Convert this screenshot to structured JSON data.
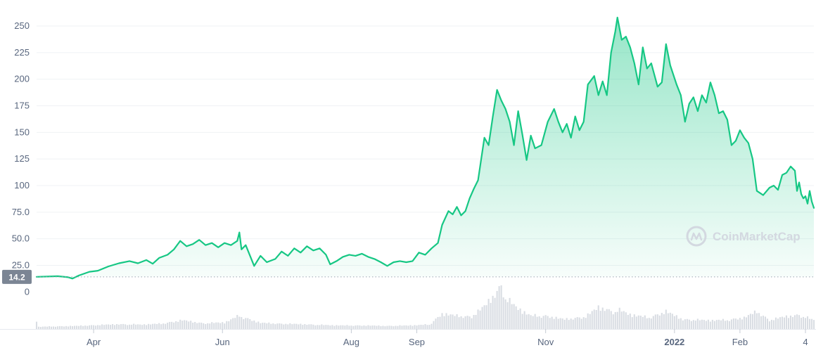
{
  "chart_data": {
    "type": "area",
    "y_axis": {
      "ticks": [
        {
          "value": 250,
          "label": "250"
        },
        {
          "value": 225,
          "label": "225"
        },
        {
          "value": 200,
          "label": "200"
        },
        {
          "value": 175,
          "label": "175"
        },
        {
          "value": 150,
          "label": "150"
        },
        {
          "value": 125,
          "label": "125"
        },
        {
          "value": 100,
          "label": "100"
        },
        {
          "value": 75,
          "label": "75.0"
        },
        {
          "value": 50,
          "label": "50.0"
        },
        {
          "value": 25,
          "label": "25.0"
        }
      ],
      "volume_zero_label": "0",
      "ylim": [
        14.2,
        260
      ]
    },
    "x_axis": {
      "ticks": [
        {
          "date": "2021-04-01",
          "label": "Apr",
          "bold": false
        },
        {
          "date": "2021-06-01",
          "label": "Jun",
          "bold": false
        },
        {
          "date": "2021-08-01",
          "label": "Aug",
          "bold": false
        },
        {
          "date": "2021-09-01",
          "label": "Sep",
          "bold": false
        },
        {
          "date": "2021-11-01",
          "label": "Nov",
          "bold": false
        },
        {
          "date": "2022-01-01",
          "label": "2022",
          "bold": true
        },
        {
          "date": "2022-02-01",
          "label": "Feb",
          "bold": false
        },
        {
          "date": "2022-03-04",
          "label": "4",
          "bold": false
        }
      ],
      "xlim": [
        "2021-03-05",
        "2022-03-08"
      ]
    },
    "reference_line": {
      "value": 14.2,
      "label": "14.2"
    },
    "line_color": "#16c784",
    "watermark": "CoinMarketCap",
    "price_series": [
      [
        "2021-03-05",
        14.2
      ],
      [
        "2021-03-10",
        14.5
      ],
      [
        "2021-03-15",
        14.8
      ],
      [
        "2021-03-20",
        13.8
      ],
      [
        "2021-03-22",
        12.6
      ],
      [
        "2021-03-25",
        15.5
      ],
      [
        "2021-03-30",
        19.0
      ],
      [
        "2021-04-03",
        20.0
      ],
      [
        "2021-04-08",
        24.0
      ],
      [
        "2021-04-13",
        27.0
      ],
      [
        "2021-04-18",
        29.0
      ],
      [
        "2021-04-22",
        27.0
      ],
      [
        "2021-04-26",
        30.0
      ],
      [
        "2021-04-29",
        26.5
      ],
      [
        "2021-05-02",
        32.0
      ],
      [
        "2021-05-06",
        35.0
      ],
      [
        "2021-05-09",
        40.0
      ],
      [
        "2021-05-12",
        48.0
      ],
      [
        "2021-05-15",
        43.0
      ],
      [
        "2021-05-18",
        45.0
      ],
      [
        "2021-05-21",
        49.0
      ],
      [
        "2021-05-24",
        44.0
      ],
      [
        "2021-05-27",
        46.0
      ],
      [
        "2021-05-30",
        42.0
      ],
      [
        "2021-06-02",
        46.0
      ],
      [
        "2021-06-05",
        44.0
      ],
      [
        "2021-06-08",
        48.0
      ],
      [
        "2021-06-09",
        56.0
      ],
      [
        "2021-06-10",
        40.0
      ],
      [
        "2021-06-12",
        44.0
      ],
      [
        "2021-06-16",
        24.5
      ],
      [
        "2021-06-19",
        34.0
      ],
      [
        "2021-06-22",
        28.0
      ],
      [
        "2021-06-26",
        31.0
      ],
      [
        "2021-06-29",
        38.0
      ],
      [
        "2021-07-02",
        34.0
      ],
      [
        "2021-07-05",
        41.0
      ],
      [
        "2021-07-08",
        37.0
      ],
      [
        "2021-07-11",
        43.0
      ],
      [
        "2021-07-14",
        39.0
      ],
      [
        "2021-07-17",
        41.0
      ],
      [
        "2021-07-20",
        35.0
      ],
      [
        "2021-07-22",
        26.0
      ],
      [
        "2021-07-25",
        29.0
      ],
      [
        "2021-07-28",
        33.0
      ],
      [
        "2021-07-31",
        35.0
      ],
      [
        "2021-08-03",
        34.0
      ],
      [
        "2021-08-06",
        36.0
      ],
      [
        "2021-08-09",
        33.0
      ],
      [
        "2021-08-12",
        31.0
      ],
      [
        "2021-08-15",
        28.0
      ],
      [
        "2021-08-18",
        24.5
      ],
      [
        "2021-08-21",
        28.0
      ],
      [
        "2021-08-24",
        29.0
      ],
      [
        "2021-08-27",
        28.0
      ],
      [
        "2021-08-30",
        29.0
      ],
      [
        "2021-09-02",
        37.0
      ],
      [
        "2021-09-05",
        35.0
      ],
      [
        "2021-09-08",
        41.0
      ],
      [
        "2021-09-11",
        46.0
      ],
      [
        "2021-09-13",
        63.0
      ],
      [
        "2021-09-16",
        76.0
      ],
      [
        "2021-09-18",
        73.0
      ],
      [
        "2021-09-20",
        80.0
      ],
      [
        "2021-09-22",
        72.0
      ],
      [
        "2021-09-24",
        76.0
      ],
      [
        "2021-09-26",
        88.0
      ],
      [
        "2021-09-28",
        97.0
      ],
      [
        "2021-09-30",
        105.0
      ],
      [
        "2021-10-03",
        145.0
      ],
      [
        "2021-10-05",
        138.0
      ],
      [
        "2021-10-07",
        165.0
      ],
      [
        "2021-10-09",
        190.0
      ],
      [
        "2021-10-11",
        180.0
      ],
      [
        "2021-10-13",
        172.0
      ],
      [
        "2021-10-15",
        160.0
      ],
      [
        "2021-10-17",
        138.0
      ],
      [
        "2021-10-19",
        170.0
      ],
      [
        "2021-10-21",
        148.0
      ],
      [
        "2021-10-23",
        124.0
      ],
      [
        "2021-10-25",
        147.0
      ],
      [
        "2021-10-27",
        135.0
      ],
      [
        "2021-10-30",
        138.0
      ],
      [
        "2021-11-02",
        160.0
      ],
      [
        "2021-11-05",
        172.0
      ],
      [
        "2021-11-07",
        160.0
      ],
      [
        "2021-11-09",
        150.0
      ],
      [
        "2021-11-11",
        158.0
      ],
      [
        "2021-11-13",
        145.0
      ],
      [
        "2021-11-15",
        165.0
      ],
      [
        "2021-11-17",
        152.0
      ],
      [
        "2021-11-19",
        160.0
      ],
      [
        "2021-11-21",
        195.0
      ],
      [
        "2021-11-24",
        203.0
      ],
      [
        "2021-11-26",
        185.0
      ],
      [
        "2021-11-28",
        198.0
      ],
      [
        "2021-11-30",
        185.0
      ],
      [
        "2021-12-02",
        225.0
      ],
      [
        "2021-12-04",
        245.0
      ],
      [
        "2021-12-05",
        258.0
      ],
      [
        "2021-12-07",
        237.0
      ],
      [
        "2021-12-09",
        240.0
      ],
      [
        "2021-12-11",
        230.0
      ],
      [
        "2021-12-13",
        215.0
      ],
      [
        "2021-12-15",
        195.0
      ],
      [
        "2021-12-17",
        230.0
      ],
      [
        "2021-12-19",
        210.0
      ],
      [
        "2021-12-21",
        215.0
      ],
      [
        "2021-12-24",
        193.0
      ],
      [
        "2021-12-26",
        197.0
      ],
      [
        "2021-12-28",
        233.0
      ],
      [
        "2021-12-30",
        213.0
      ],
      [
        "2022-01-02",
        195.0
      ],
      [
        "2022-01-04",
        185.0
      ],
      [
        "2022-01-06",
        160.0
      ],
      [
        "2022-01-08",
        177.0
      ],
      [
        "2022-01-10",
        183.0
      ],
      [
        "2022-01-12",
        170.0
      ],
      [
        "2022-01-14",
        185.0
      ],
      [
        "2022-01-16",
        178.0
      ],
      [
        "2022-01-18",
        197.0
      ],
      [
        "2022-01-20",
        185.0
      ],
      [
        "2022-01-22",
        168.0
      ],
      [
        "2022-01-24",
        170.0
      ],
      [
        "2022-01-26",
        162.0
      ],
      [
        "2022-01-28",
        138.0
      ],
      [
        "2022-01-30",
        142.0
      ],
      [
        "2022-02-01",
        152.0
      ],
      [
        "2022-02-03",
        145.0
      ],
      [
        "2022-02-05",
        140.0
      ],
      [
        "2022-02-07",
        125.0
      ],
      [
        "2022-02-09",
        95.0
      ],
      [
        "2022-02-12",
        91.0
      ],
      [
        "2022-02-15",
        98.0
      ],
      [
        "2022-02-17",
        100.0
      ],
      [
        "2022-02-19",
        96.0
      ],
      [
        "2022-02-21",
        110.0
      ],
      [
        "2022-02-23",
        112.0
      ],
      [
        "2022-02-25",
        118.0
      ],
      [
        "2022-02-27",
        114.0
      ],
      [
        "2022-02-28",
        95.0
      ],
      [
        "2022-03-01",
        103.0
      ],
      [
        "2022-03-02",
        92.0
      ],
      [
        "2022-03-03",
        88.0
      ],
      [
        "2022-03-04",
        90.0
      ],
      [
        "2022-03-05",
        83.0
      ],
      [
        "2022-03-06",
        95.0
      ],
      [
        "2022-03-07",
        85.0
      ],
      [
        "2022-03-08",
        79.0
      ]
    ],
    "volume": {
      "unit": "relative",
      "series": [
        [
          "2021-03-06",
          0.05
        ],
        [
          "2021-03-14",
          0.06
        ],
        [
          "2021-03-24",
          0.07
        ],
        [
          "2021-04-03",
          0.09
        ],
        [
          "2021-04-13",
          0.11
        ],
        [
          "2021-04-23",
          0.1
        ],
        [
          "2021-05-03",
          0.12
        ],
        [
          "2021-05-13",
          0.2
        ],
        [
          "2021-05-23",
          0.13
        ],
        [
          "2021-06-02",
          0.15
        ],
        [
          "2021-06-09",
          0.3
        ],
        [
          "2021-06-19",
          0.14
        ],
        [
          "2021-06-29",
          0.12
        ],
        [
          "2021-07-09",
          0.11
        ],
        [
          "2021-07-19",
          0.09
        ],
        [
          "2021-07-29",
          0.08
        ],
        [
          "2021-08-08",
          0.08
        ],
        [
          "2021-08-18",
          0.07
        ],
        [
          "2021-08-28",
          0.08
        ],
        [
          "2021-09-07",
          0.1
        ],
        [
          "2021-09-13",
          0.35
        ],
        [
          "2021-09-20",
          0.3
        ],
        [
          "2021-09-27",
          0.28
        ],
        [
          "2021-10-03",
          0.52
        ],
        [
          "2021-10-09",
          0.85
        ],
        [
          "2021-10-11",
          1.0
        ],
        [
          "2021-10-13",
          0.7
        ],
        [
          "2021-10-18",
          0.5
        ],
        [
          "2021-10-25",
          0.3
        ],
        [
          "2021-11-01",
          0.3
        ],
        [
          "2021-11-10",
          0.22
        ],
        [
          "2021-11-20",
          0.28
        ],
        [
          "2021-11-26",
          0.5
        ],
        [
          "2021-12-03",
          0.4
        ],
        [
          "2021-12-06",
          0.42
        ],
        [
          "2021-12-12",
          0.32
        ],
        [
          "2021-12-20",
          0.26
        ],
        [
          "2021-12-28",
          0.4
        ],
        [
          "2022-01-05",
          0.22
        ],
        [
          "2022-01-15",
          0.2
        ],
        [
          "2022-01-25",
          0.2
        ],
        [
          "2022-02-03",
          0.26
        ],
        [
          "2022-02-09",
          0.4
        ],
        [
          "2022-02-15",
          0.2
        ],
        [
          "2022-02-22",
          0.28
        ],
        [
          "2022-03-01",
          0.32
        ],
        [
          "2022-03-08",
          0.2
        ]
      ]
    }
  }
}
